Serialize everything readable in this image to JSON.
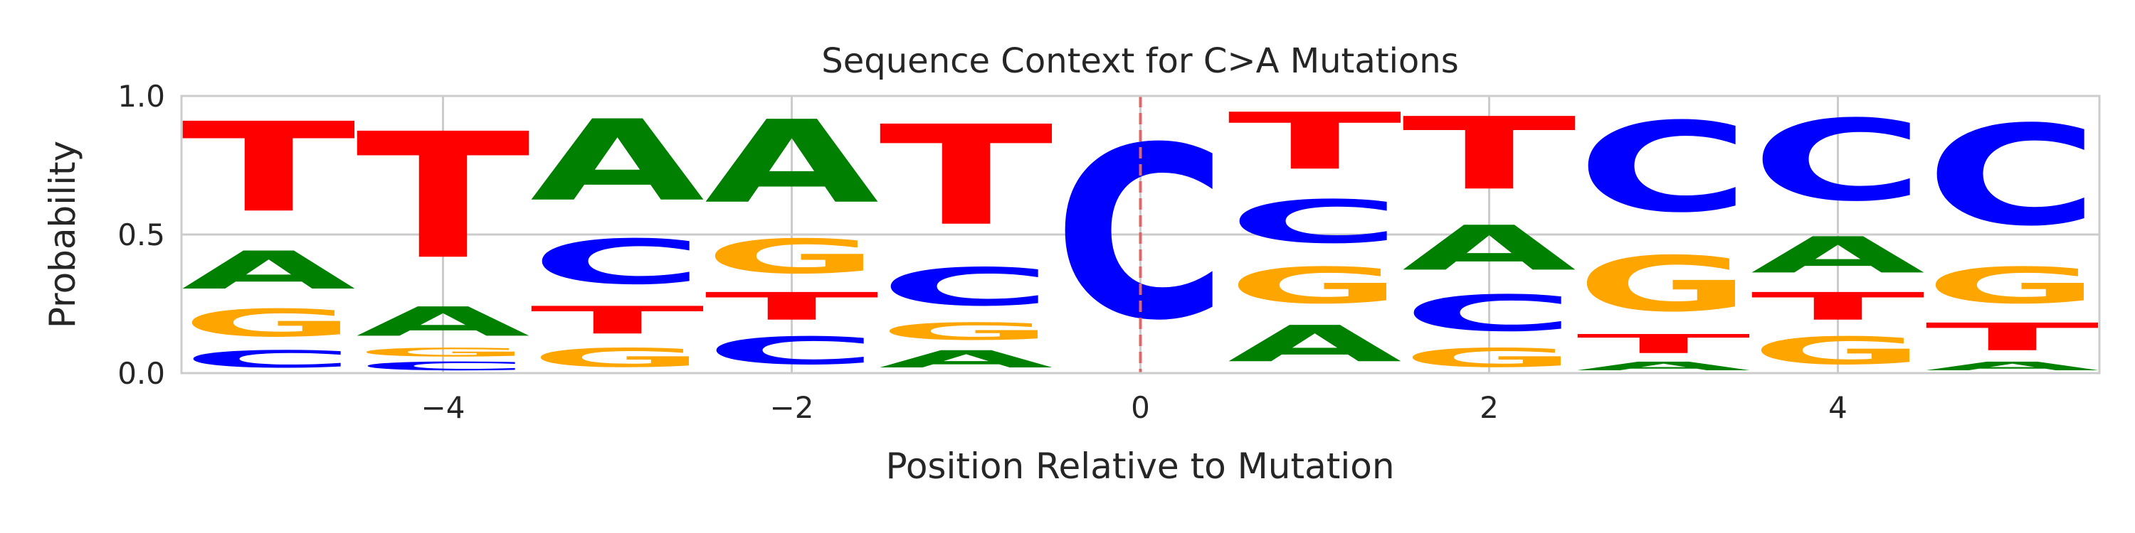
{
  "chart_data": {
    "type": "sequence-logo",
    "title": "Sequence Context for C>A Mutations",
    "xlabel": "Position Relative to Mutation",
    "ylabel": "Probability",
    "xlim": [
      -5.5,
      5.5
    ],
    "ylim": [
      0.0,
      1.0
    ],
    "x_ticks": [
      -4,
      -2,
      0,
      2,
      4
    ],
    "x_tick_labels": [
      "−4",
      "−2",
      "0",
      "2",
      "4"
    ],
    "y_ticks": [
      0.0,
      0.5,
      1.0
    ],
    "y_tick_labels": [
      "0.0",
      "0.5",
      "1.0"
    ],
    "grid": true,
    "mutation_marker": {
      "x": 0,
      "style": "dashed",
      "color": "#e06666"
    },
    "colors": {
      "A": "#008000",
      "C": "#0000ff",
      "G": "#ffa500",
      "T": "#ff0000"
    },
    "positions": [
      {
        "x": -5,
        "stack": [
          {
            "base": "C",
            "p": 0.1
          },
          {
            "base": "G",
            "p": 0.16
          },
          {
            "base": "A",
            "p": 0.22
          },
          {
            "base": "T",
            "p": 0.52
          }
        ]
      },
      {
        "x": -4,
        "stack": [
          {
            "base": "C",
            "p": 0.05
          },
          {
            "base": "G",
            "p": 0.05
          },
          {
            "base": "A",
            "p": 0.17
          },
          {
            "base": "T",
            "p": 0.73
          }
        ]
      },
      {
        "x": -3,
        "stack": [
          {
            "base": "G",
            "p": 0.11
          },
          {
            "base": "T",
            "p": 0.16
          },
          {
            "base": "C",
            "p": 0.26
          },
          {
            "base": "A",
            "p": 0.47
          }
        ]
      },
      {
        "x": -2,
        "stack": [
          {
            "base": "C",
            "p": 0.16
          },
          {
            "base": "T",
            "p": 0.16
          },
          {
            "base": "G",
            "p": 0.2
          },
          {
            "base": "A",
            "p": 0.48
          }
        ]
      },
      {
        "x": -1,
        "stack": [
          {
            "base": "A",
            "p": 0.1
          },
          {
            "base": "G",
            "p": 0.1
          },
          {
            "base": "C",
            "p": 0.22
          },
          {
            "base": "T",
            "p": 0.58
          }
        ]
      },
      {
        "x": 0,
        "stack": [
          {
            "base": "C",
            "p": 1.0
          }
        ]
      },
      {
        "x": 1,
        "stack": [
          {
            "base": "A",
            "p": 0.21
          },
          {
            "base": "G",
            "p": 0.21
          },
          {
            "base": "C",
            "p": 0.25
          },
          {
            "base": "T",
            "p": 0.33
          }
        ]
      },
      {
        "x": 2,
        "stack": [
          {
            "base": "G",
            "p": 0.11
          },
          {
            "base": "C",
            "p": 0.21
          },
          {
            "base": "A",
            "p": 0.26
          },
          {
            "base": "T",
            "p": 0.42
          }
        ]
      },
      {
        "x": 3,
        "stack": [
          {
            "base": "A",
            "p": 0.05
          },
          {
            "base": "T",
            "p": 0.11
          },
          {
            "base": "G",
            "p": 0.32
          },
          {
            "base": "C",
            "p": 0.52
          }
        ]
      },
      {
        "x": 4,
        "stack": [
          {
            "base": "G",
            "p": 0.16
          },
          {
            "base": "T",
            "p": 0.16
          },
          {
            "base": "A",
            "p": 0.21
          },
          {
            "base": "C",
            "p": 0.47
          }
        ]
      },
      {
        "x": 5,
        "stack": [
          {
            "base": "A",
            "p": 0.05
          },
          {
            "base": "T",
            "p": 0.16
          },
          {
            "base": "G",
            "p": 0.21
          },
          {
            "base": "C",
            "p": 0.58
          }
        ]
      }
    ]
  }
}
